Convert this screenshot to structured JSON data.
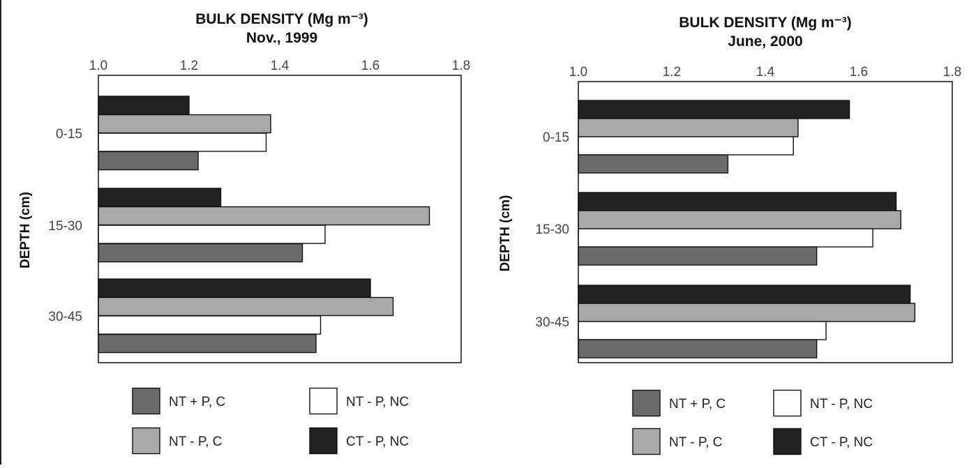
{
  "colors": {
    "NT + P, C": "#6b6b6b",
    "NT - P, C": "#a9a9a9",
    "NT - P, NC": "#ffffff",
    "CT - P, NC": "#222222",
    "axis": "#111111"
  },
  "chart_data": [
    {
      "type": "bar",
      "orientation": "horizontal",
      "title": "BULK DENSITY (Mg m⁻³)",
      "subtitle": "Nov., 1999",
      "xlabel": "",
      "ylabel": "DEPTH (cm)",
      "xlim": [
        1.0,
        1.8
      ],
      "xticks": [
        "1.0",
        "1.2",
        "1.4",
        "1.6",
        "1.8"
      ],
      "x_axis_position": "top",
      "grid": false,
      "legend_position": "bottom",
      "categories": [
        "0-15",
        "15-30",
        "30-45"
      ],
      "series": [
        {
          "name": "CT - P, NC",
          "values": [
            1.2,
            1.27,
            1.6
          ]
        },
        {
          "name": "NT - P, C",
          "values": [
            1.38,
            1.73,
            1.65
          ]
        },
        {
          "name": "NT - P, NC",
          "values": [
            1.37,
            1.5,
            1.49
          ]
        },
        {
          "name": "NT + P, C",
          "values": [
            1.22,
            1.45,
            1.48
          ]
        }
      ],
      "legend": [
        {
          "name": "NT + P, C",
          "label": "NT + P, C"
        },
        {
          "name": "NT - P, NC",
          "label": "NT - P, NC"
        },
        {
          "name": "NT - P, C",
          "label": "NT - P, C"
        },
        {
          "name": "CT - P, NC",
          "label": "CT - P, NC"
        }
      ]
    },
    {
      "type": "bar",
      "orientation": "horizontal",
      "title": "BULK DENSITY (Mg m⁻³)",
      "subtitle": "June, 2000",
      "xlabel": "",
      "ylabel": "DEPTH (cm)",
      "xlim": [
        1.0,
        1.8
      ],
      "xticks": [
        "1.0",
        "1.2",
        "1.4",
        "1.6",
        "1.8"
      ],
      "x_axis_position": "top",
      "grid": false,
      "legend_position": "bottom",
      "categories": [
        "0-15",
        "15-30",
        "30-45"
      ],
      "series": [
        {
          "name": "CT - P, NC",
          "values": [
            1.58,
            1.68,
            1.71
          ]
        },
        {
          "name": "NT - P, C",
          "values": [
            1.47,
            1.69,
            1.72
          ]
        },
        {
          "name": "NT - P, NC",
          "values": [
            1.46,
            1.63,
            1.53
          ]
        },
        {
          "name": "NT + P, C",
          "values": [
            1.32,
            1.51,
            1.51
          ]
        }
      ],
      "legend": [
        {
          "name": "NT + P, C",
          "label": "NT + P, C"
        },
        {
          "name": "NT - P, NC",
          "label": "NT - P, NC"
        },
        {
          "name": "NT - P, C",
          "label": "NT - P, C"
        },
        {
          "name": "CT - P, NC",
          "label": "CT - P, NC"
        }
      ]
    }
  ]
}
